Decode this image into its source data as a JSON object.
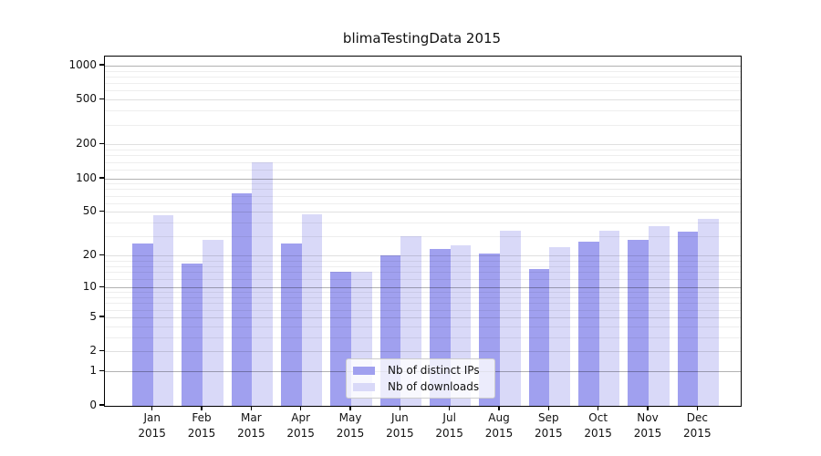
{
  "chart_data": {
    "type": "bar",
    "title": "blimaTestingData 2015",
    "categories": [
      "Jan",
      "Feb",
      "Mar",
      "Apr",
      "May",
      "Jun",
      "Jul",
      "Aug",
      "Sep",
      "Oct",
      "Nov",
      "Dec"
    ],
    "year_label": "2015",
    "series": [
      {
        "name": "Nb of distinct IPs",
        "color": "#a0a0ef",
        "values": [
          26,
          17,
          73,
          26,
          14,
          20,
          23,
          21,
          15,
          27,
          28,
          33
        ]
      },
      {
        "name": "Nb of downloads",
        "color": "#d9d9f8",
        "values": [
          47,
          28,
          140,
          48,
          14,
          30,
          25,
          34,
          24,
          34,
          37,
          43
        ]
      }
    ],
    "xlabel": "",
    "ylabel": "",
    "y_scale": "log1p",
    "ylim": [
      0,
      1200
    ],
    "y_ticks": [
      0,
      1,
      2,
      5,
      10,
      20,
      50,
      100,
      200,
      500,
      1000
    ],
    "grid": "horizontal",
    "major_gridlines": [
      1,
      10,
      100,
      1000
    ],
    "labeled_minor_gridlines": [
      2,
      5,
      20,
      50,
      200,
      500
    ],
    "faint_gridlines": [
      3,
      4,
      6,
      7,
      8,
      9,
      12,
      14,
      16,
      18,
      30,
      40,
      60,
      70,
      80,
      90,
      120,
      140,
      160,
      180,
      300,
      400,
      600,
      700,
      800,
      900
    ],
    "legend": {
      "position": "lower center",
      "entries": [
        "Nb of distinct IPs",
        "Nb of downloads"
      ]
    }
  },
  "colors": {
    "background": "#ffffff",
    "bar_ips": "#a0a0ef",
    "bar_downloads": "#d9d9f8",
    "spine": "#000000",
    "legend_border": "#cccccc",
    "text": "#111111"
  }
}
